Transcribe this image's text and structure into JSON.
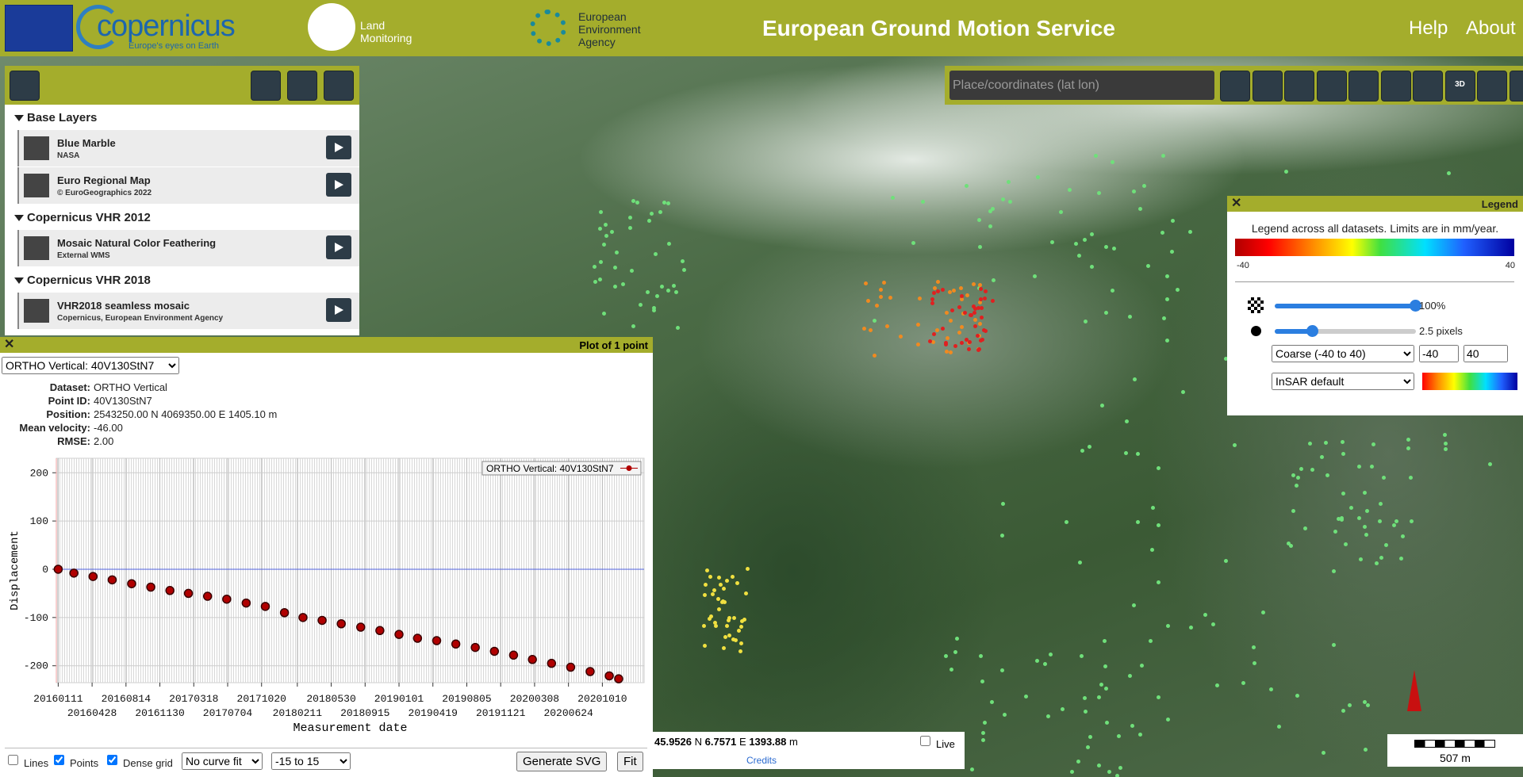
{
  "header": {
    "logo_text": "copernicus",
    "logo_tagline": "Europe's eyes on Earth",
    "land_monitoring": [
      "Land",
      "Monitoring"
    ],
    "eea": [
      "European",
      "Environment",
      "Agency"
    ],
    "title": "European Ground Motion Service",
    "nav": [
      "Help",
      "About"
    ]
  },
  "layers_panel": {
    "groups": [
      {
        "title": "Base Layers",
        "layers": [
          {
            "name": "Blue Marble",
            "source": "NASA"
          },
          {
            "name": "Euro Regional Map",
            "source": "© EuroGeographics 2022"
          }
        ]
      },
      {
        "title": "Copernicus VHR 2012",
        "layers": [
          {
            "name": "Mosaic Natural Color Feathering",
            "source": "External WMS"
          }
        ]
      },
      {
        "title": "Copernicus VHR 2018",
        "layers": [
          {
            "name": "VHR2018 seamless mosaic",
            "source": "Copernicus, European Environment Agency"
          }
        ]
      }
    ]
  },
  "toolbar": {
    "search_placeholder": "Place/coordinates (lat lon)",
    "three_d": "3D"
  },
  "legend": {
    "title": "Legend",
    "description": "Legend across all datasets. Limits are in mm/year.",
    "colorbar_min": -40,
    "colorbar_max": 40,
    "opacity": "100%",
    "point_size": "2.5 pixels",
    "scale_select": "Coarse (-40 to 40)",
    "limit_inputs": [
      -40,
      40
    ],
    "palette_select": "InSAR default"
  },
  "status": {
    "lat": 45.9526,
    "lat_hemisphere": "N",
    "lon": 6.7571,
    "lon_hemisphere": "E",
    "elevation": 1393.88,
    "elevation_unit": "m",
    "credits": "Credits",
    "live": "Live"
  },
  "scale_bar": {
    "label": "507 m"
  },
  "plot_window": {
    "title": "Plot of 1 point",
    "selector": "ORTHO Vertical: 40V130StN7",
    "info": [
      {
        "label": "Dataset:",
        "value": "ORTHO Vertical"
      },
      {
        "label": "Point ID:",
        "value": "40V130StN7"
      },
      {
        "label": "Position:",
        "value": "2543250.00 N 4069350.00 E 1405.10 m"
      },
      {
        "label": "Mean velocity:",
        "value": "-46.00"
      },
      {
        "label": "RMSE:",
        "value": "2.00"
      }
    ],
    "chart": {
      "type": "scatter",
      "y_label": "Displacement",
      "x_label": "Measurement date",
      "series": [
        {
          "name": "ORTHO Vertical: 40V130StN7",
          "color": "#b00000",
          "x": [
            "20160111",
            "20160301",
            "20160501",
            "20160701",
            "20160901",
            "20161101",
            "20170101",
            "20170301",
            "20170501",
            "20170701",
            "20170901",
            "20171101",
            "20180101",
            "20180301",
            "20180501",
            "20180701",
            "20180901",
            "20181101",
            "20190101",
            "20190301",
            "20190501",
            "20190701",
            "20190901",
            "20191101",
            "20200101",
            "20200301",
            "20200501",
            "20200701",
            "20200901",
            "20201101",
            "20201201"
          ],
          "values": [
            0,
            -8,
            -15,
            -22,
            -30,
            -37,
            -44,
            -50,
            -56,
            -62,
            -70,
            -77,
            -90,
            -100,
            -106,
            -113,
            -120,
            -127,
            -135,
            -143,
            -148,
            -155,
            -162,
            -170,
            -178,
            -187,
            -195,
            -203,
            -212,
            -221,
            -227
          ]
        }
      ],
      "xlim": [
        "20160105",
        "20210220"
      ],
      "xticks": [
        "20160111",
        "20160428",
        "20160814",
        "20161130",
        "20170318",
        "20170704",
        "20171020",
        "20180211",
        "20180530",
        "20180915",
        "20190101",
        "20190419",
        "20190805",
        "20191121",
        "20200308",
        "20200624",
        "20201010"
      ],
      "ylim": [
        -235,
        230
      ],
      "yticks": [
        200,
        100,
        0,
        -100,
        -200
      ],
      "grid": true
    },
    "controls": {
      "checkboxes": [
        {
          "label": "Lines",
          "checked": false
        },
        {
          "label": "Points",
          "checked": true
        },
        {
          "label": "Dense grid",
          "checked": true
        }
      ],
      "curve_fit": "No curve fit",
      "range": "-15 to 15",
      "generate": "Generate SVG",
      "fit": "Fit"
    }
  }
}
